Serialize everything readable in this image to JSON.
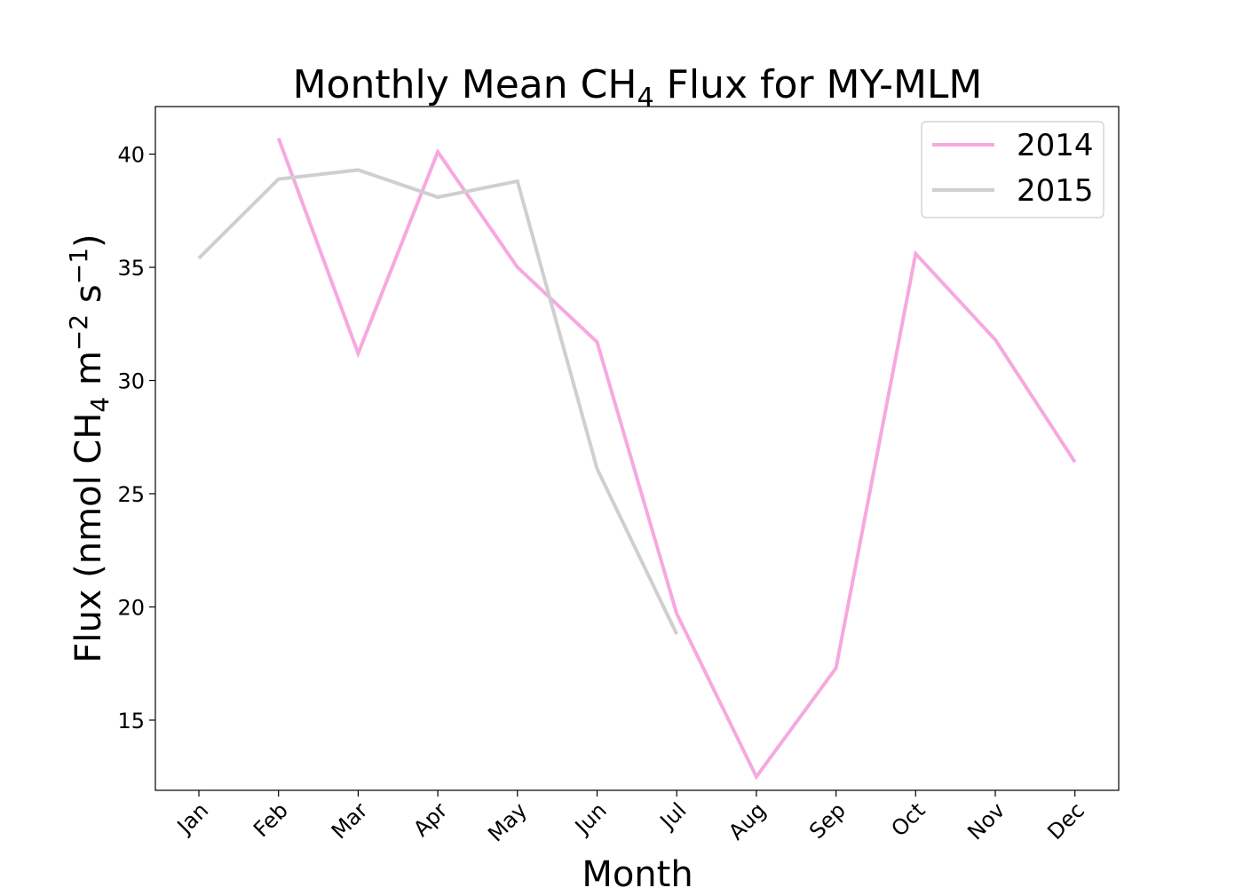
{
  "chart_data": {
    "type": "line",
    "title": {
      "prefix": "Monthly Mean CH",
      "sub": "4",
      "suffix": " Flux for MY-MLM"
    },
    "xlabel": "Month",
    "ylabel": {
      "p1": "Flux (nmol CH",
      "sub1": "4",
      "p2": " m",
      "sup1": "−2",
      "p3": " s",
      "sup2": "−1",
      "p4": ")"
    },
    "categories": [
      "Jan",
      "Feb",
      "Mar",
      "Apr",
      "May",
      "Jun",
      "Jul",
      "Aug",
      "Sep",
      "Oct",
      "Nov",
      "Dec"
    ],
    "ylim": [
      11.9,
      42.1
    ],
    "yticks": [
      15,
      20,
      25,
      30,
      35,
      40
    ],
    "grid": false,
    "legend_position": "top-right",
    "series": [
      {
        "name": "2014",
        "color": "#f7a8e0",
        "values": [
          null,
          40.7,
          31.2,
          40.1,
          35.0,
          31.7,
          19.7,
          12.5,
          17.3,
          35.6,
          31.8,
          26.4
        ]
      },
      {
        "name": "2015",
        "color": "#cfcfcf",
        "values": [
          35.4,
          38.9,
          39.3,
          38.1,
          38.8,
          26.1,
          18.8,
          null,
          null,
          null,
          null,
          null
        ]
      }
    ]
  }
}
